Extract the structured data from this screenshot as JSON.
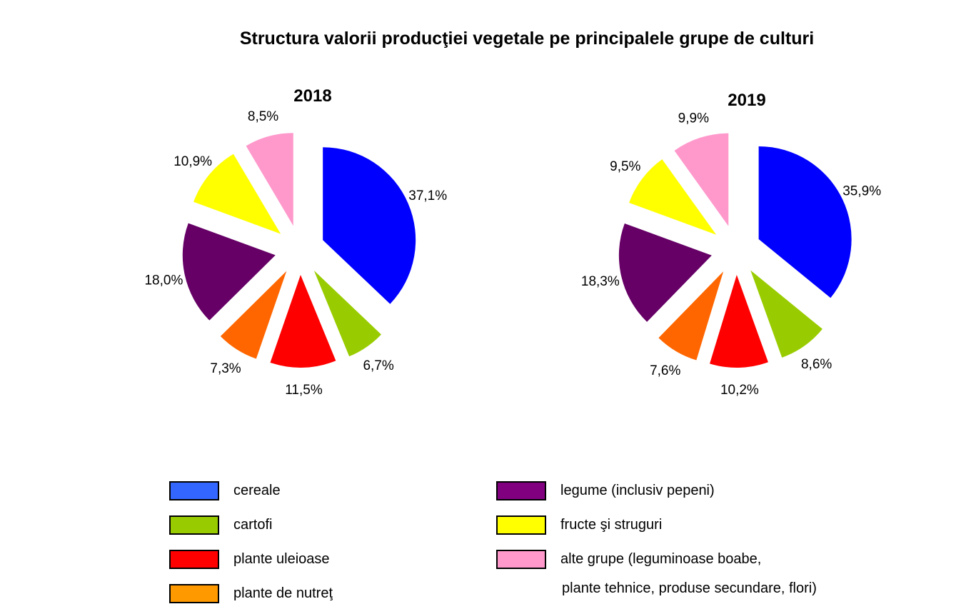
{
  "chart_data": {
    "type": "pie",
    "title": "Structura valorii producţiei vegetale pe principalele grupe de culturi",
    "categories": [
      "cereale",
      "cartofi",
      "plante uleioase",
      "plante de nutreţ",
      "legume (inclusiv pepeni)",
      "fructe şi struguri",
      "alte grupe (leguminoase boabe, plante tehnice, produse secundare, flori)"
    ],
    "colors": {
      "cereale": "#0000ff",
      "cartofi": "#99cc00",
      "plante uleioase": "#ff0000",
      "plante de nutreţ": "#ff6600",
      "legume (inclusiv pepeni)": "#660066",
      "fructe şi struguri": "#ffff00",
      "alte grupe": "#ff99cc"
    },
    "legend_colors": [
      "#3366ff",
      "#99cc00",
      "#ff0000",
      "#ff9900",
      "#800080",
      "#ffff00",
      "#ff99cc"
    ],
    "charts": [
      {
        "subtitle": "2018",
        "values": [
          37.1,
          6.7,
          11.5,
          7.3,
          18.0,
          10.9,
          8.5
        ],
        "labels": [
          "37,1%",
          "6,7%",
          "11,5%",
          "7,3%",
          "18,0%",
          "10,9%",
          "8,5%"
        ]
      },
      {
        "subtitle": "2019",
        "values": [
          35.9,
          8.6,
          10.2,
          7.6,
          18.3,
          9.5,
          9.9
        ],
        "labels": [
          "35,9%",
          "8,6%",
          "10,2%",
          "7,6%",
          "18,3%",
          "9,5%",
          "9,9%"
        ]
      }
    ],
    "legend_placement": "bottom"
  },
  "legend": {
    "items": [
      "cereale",
      "cartofi",
      "plante uleioase",
      "plante de nutreţ",
      "legume (inclusiv pepeni)",
      "fructe şi struguri",
      "alte grupe (leguminoase boabe,"
    ],
    "item7_line2": "plante tehnice, produse secundare, flori)"
  }
}
